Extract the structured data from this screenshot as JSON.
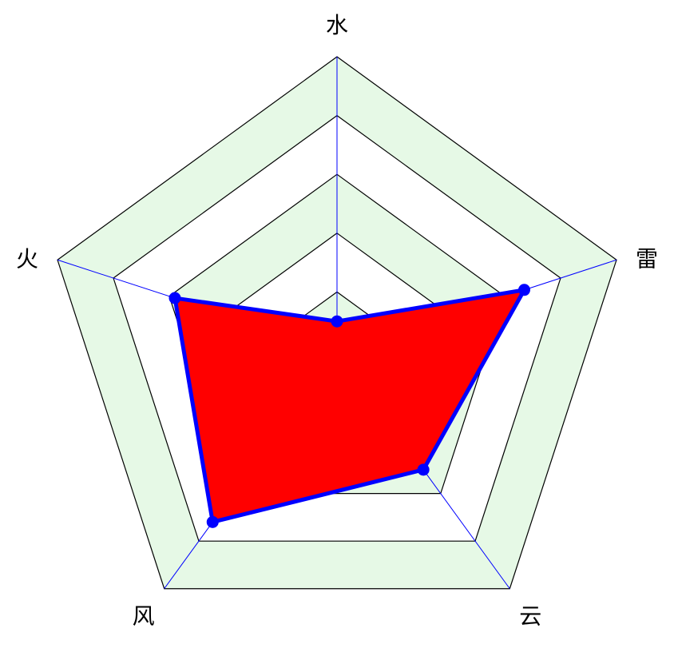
{
  "chart_data": {
    "type": "radar",
    "title": "",
    "axes": [
      "水",
      "雷",
      "云",
      "风",
      "火"
    ],
    "series": [
      {
        "values": [
          10,
          67,
          50,
          72,
          58
        ]
      }
    ],
    "range": [
      0,
      100
    ],
    "rings": 5,
    "colors": {
      "band_fill": "#e6f9e6",
      "ring_stroke": "#000000",
      "spoke_stroke": "#0000ff",
      "series_fill": "#ff0000",
      "series_stroke": "#0000ff",
      "marker_fill": "#0000ff"
    },
    "legend": "none"
  }
}
